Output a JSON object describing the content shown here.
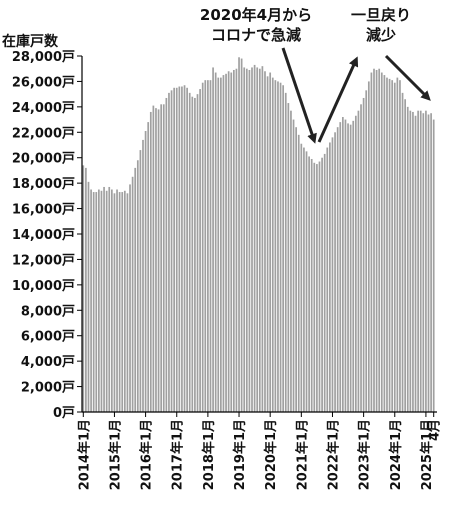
{
  "chart_data": {
    "type": "bar",
    "ylabel": "在庫戸数",
    "ylim": [
      0,
      28000
    ],
    "yticks": [
      {
        "value": 0,
        "label": "0戸"
      },
      {
        "value": 2000,
        "label": "2,000戸"
      },
      {
        "value": 4000,
        "label": "4,000戸"
      },
      {
        "value": 6000,
        "label": "6,000戸"
      },
      {
        "value": 8000,
        "label": "8,000戸"
      },
      {
        "value": 10000,
        "label": "10,000戸"
      },
      {
        "value": 12000,
        "label": "12,000戸"
      },
      {
        "value": 14000,
        "label": "14,000戸"
      },
      {
        "value": 16000,
        "label": "16,000戸"
      },
      {
        "value": 18000,
        "label": "18,000戸"
      },
      {
        "value": 20000,
        "label": "20,000戸"
      },
      {
        "value": 22000,
        "label": "22,000戸"
      },
      {
        "value": 24000,
        "label": "24,000戸"
      },
      {
        "value": 26000,
        "label": "26,000戸"
      },
      {
        "value": 28000,
        "label": "28,000戸"
      }
    ],
    "xticks": [
      {
        "index": 0,
        "label": "2014年1月"
      },
      {
        "index": 12,
        "label": "2015年1月"
      },
      {
        "index": 24,
        "label": "2016年1月"
      },
      {
        "index": 36,
        "label": "2017年1月"
      },
      {
        "index": 48,
        "label": "2018年1月"
      },
      {
        "index": 60,
        "label": "2019年1月"
      },
      {
        "index": 72,
        "label": "2020年1月"
      },
      {
        "index": 84,
        "label": "2021年1月"
      },
      {
        "index": 96,
        "label": "2022年1月"
      },
      {
        "index": 108,
        "label": "2023年1月"
      },
      {
        "index": 120,
        "label": "2024年1月"
      },
      {
        "index": 132,
        "label": "2025年1月"
      },
      {
        "index": 135,
        "label": "4月"
      }
    ],
    "grid": false,
    "bar_color": "#a0a0a0",
    "series": [
      {
        "values": [
          19400,
          19200,
          18100,
          17500,
          17300,
          17300,
          17500,
          17400,
          17700,
          17400,
          17700,
          17500,
          17200,
          17500,
          17300,
          17300,
          17400,
          17200,
          17900,
          18500,
          19200,
          19800,
          20600,
          21400,
          22100,
          22800,
          23600,
          24100,
          23900,
          23800,
          24200,
          24200,
          24700,
          25100,
          25300,
          25500,
          25500,
          25600,
          25600,
          25700,
          25500,
          25100,
          24800,
          24700,
          25000,
          25400,
          25900,
          26100,
          26100,
          26100,
          27100,
          26700,
          26300,
          26300,
          26500,
          26600,
          26800,
          26700,
          26900,
          27000,
          27900,
          27800,
          27100,
          27000,
          26900,
          27100,
          27300,
          27100,
          27000,
          27200,
          26800,
          26400,
          26700,
          26300,
          26100,
          26000,
          25900,
          25700,
          25100,
          24300,
          23700,
          23000,
          22400,
          21800,
          21100,
          20800,
          20500,
          20100,
          19900,
          19600,
          19500,
          19700,
          20000,
          20300,
          20800,
          21200,
          21600,
          22000,
          22400,
          22800,
          23200,
          23000,
          22700,
          22600,
          22900,
          23300,
          23700,
          24200,
          24700,
          25300,
          26000,
          26700,
          27000,
          26900,
          27000,
          26700,
          26500,
          26300,
          26200,
          26100,
          25900,
          26300,
          26100,
          25100,
          24600,
          24000,
          23700,
          23600,
          23300,
          23700,
          23700,
          23500,
          23700,
          23400,
          23500,
          23000
        ]
      }
    ]
  },
  "annotations": {
    "covid_line1": "2020年4月から",
    "covid_line2": "コロナで急減",
    "recover_line1": "一旦戻り",
    "recover_line2": "減少"
  }
}
